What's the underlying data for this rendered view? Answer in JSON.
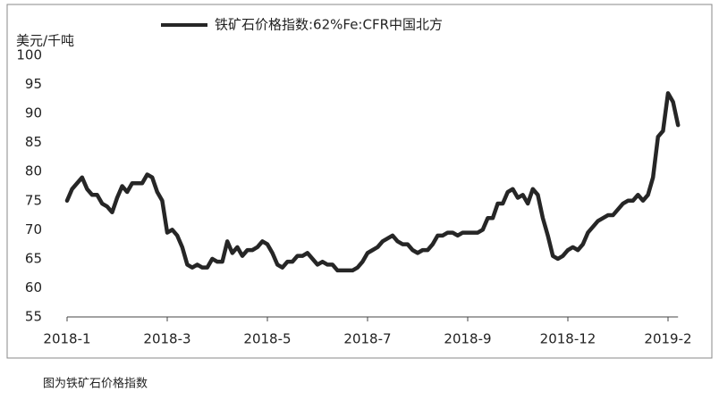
{
  "chart_data": {
    "type": "line",
    "y_label": "美元/千吨",
    "caption": "图为铁矿石价格指数",
    "categories": [
      "2018-1",
      null,
      null,
      null,
      null,
      null,
      null,
      null,
      null,
      null,
      null,
      null,
      null,
      null,
      null,
      null,
      null,
      null,
      null,
      null,
      "2018-3",
      null,
      null,
      null,
      null,
      null,
      null,
      null,
      null,
      null,
      null,
      null,
      null,
      null,
      null,
      null,
      null,
      null,
      null,
      null,
      "2018-5",
      null,
      null,
      null,
      null,
      null,
      null,
      null,
      null,
      null,
      null,
      null,
      null,
      null,
      null,
      null,
      null,
      null,
      null,
      null,
      "2018-7",
      null,
      null,
      null,
      null,
      null,
      null,
      null,
      null,
      null,
      null,
      null,
      null,
      null,
      null,
      null,
      null,
      null,
      null,
      null,
      "2018-9",
      null,
      null,
      null,
      null,
      null,
      null,
      null,
      null,
      null,
      null,
      null,
      null,
      null,
      null,
      null,
      null,
      null,
      null,
      null,
      "2018-12",
      null,
      null,
      null,
      null,
      null,
      null,
      null,
      null,
      null,
      null,
      null,
      null,
      null,
      null,
      null,
      null,
      null,
      null,
      null,
      "2019-2",
      null,
      null
    ],
    "series": [
      {
        "name": "铁矿石价格指数:62%Fe:CFR中国北方",
        "color": "#262626",
        "values": [
          75,
          77,
          78,
          79,
          77,
          76,
          76,
          74.5,
          74,
          73,
          75.5,
          77.5,
          76.5,
          78,
          78,
          78,
          79.5,
          79,
          76.5,
          75,
          69.5,
          70,
          69,
          67,
          64,
          63.5,
          64,
          63.5,
          63.5,
          65,
          64.5,
          64.5,
          68,
          66,
          67,
          65.5,
          66.5,
          66.5,
          67,
          68,
          67.5,
          66,
          64,
          63.5,
          64.5,
          64.5,
          65.5,
          65.5,
          66,
          65,
          64,
          64.5,
          64,
          64,
          63,
          63,
          63,
          63,
          63.5,
          64.5,
          66,
          66.5,
          67,
          68,
          68.5,
          69,
          68,
          67.5,
          67.5,
          66.5,
          66,
          66.5,
          66.5,
          67.5,
          69,
          69,
          69.5,
          69.5,
          69,
          69.5,
          69.5,
          69.5,
          69.5,
          70,
          72,
          72,
          74.5,
          74.5,
          76.5,
          77,
          75.5,
          76,
          74.5,
          77,
          76,
          72,
          69,
          65.5,
          65,
          65.5,
          66.5,
          67,
          66.5,
          67.5,
          69.5,
          70.5,
          71.5,
          72,
          72.5,
          72.5,
          73.5,
          74.5,
          75,
          75,
          76,
          75,
          76,
          79,
          86,
          87,
          93.5,
          92,
          88
        ]
      }
    ],
    "ylim": [
      55,
      100
    ],
    "yticks": [
      55,
      60,
      65,
      70,
      75,
      80,
      85,
      90,
      95,
      100
    ],
    "grid": false
  }
}
